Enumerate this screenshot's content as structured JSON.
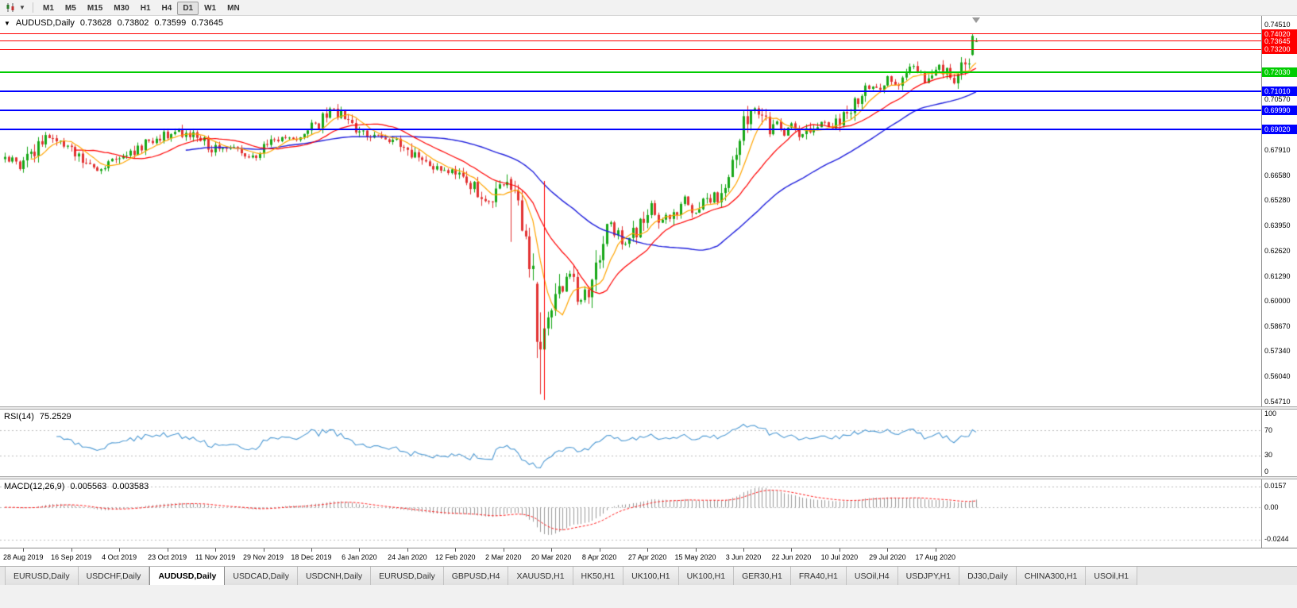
{
  "toolbar": {
    "timeframes": [
      {
        "label": "M1",
        "active": false
      },
      {
        "label": "M5",
        "active": false
      },
      {
        "label": "M15",
        "active": false
      },
      {
        "label": "M30",
        "active": false
      },
      {
        "label": "H1",
        "active": false
      },
      {
        "label": "H4",
        "active": false
      },
      {
        "label": "D1",
        "active": true
      },
      {
        "label": "W1",
        "active": false
      },
      {
        "label": "MN",
        "active": false
      }
    ]
  },
  "chart": {
    "header": {
      "marker": "▼",
      "symbol": "AUDUSD,Daily",
      "open": "0.73628",
      "high": "0.73802",
      "low": "0.73599",
      "close": "0.73645"
    },
    "price_axis_labels": [
      "0.74510",
      "0.70570",
      "0.67910",
      "0.66580",
      "0.65280",
      "0.63950",
      "0.62620",
      "0.61290",
      "0.60000",
      "0.58670",
      "0.57340",
      "0.56040",
      "0.54710"
    ],
    "date_axis": [
      {
        "i": 5,
        "label": "28 Aug 2019"
      },
      {
        "i": 18,
        "label": "16 Sep 2019"
      },
      {
        "i": 31,
        "label": "4 Oct 2019"
      },
      {
        "i": 44,
        "label": "23 Oct 2019"
      },
      {
        "i": 57,
        "label": "11 Nov 2019"
      },
      {
        "i": 70,
        "label": "29 Nov 2019"
      },
      {
        "i": 83,
        "label": "18 Dec 2019"
      },
      {
        "i": 96,
        "label": "6 Jan 2020"
      },
      {
        "i": 109,
        "label": "24 Jan 2020"
      },
      {
        "i": 122,
        "label": "12 Feb 2020"
      },
      {
        "i": 135,
        "label": "2 Mar 2020"
      },
      {
        "i": 148,
        "label": "20 Mar 2020"
      },
      {
        "i": 161,
        "label": "8 Apr 2020"
      },
      {
        "i": 174,
        "label": "27 Apr 2020"
      },
      {
        "i": 187,
        "label": "15 May 2020"
      },
      {
        "i": 200,
        "label": "3 Jun 2020"
      },
      {
        "i": 213,
        "label": "22 Jun 2020"
      },
      {
        "i": 226,
        "label": "10 Jul 2020"
      },
      {
        "i": 239,
        "label": "29 Jul 2020"
      },
      {
        "i": 252,
        "label": "17 Aug 2020"
      }
    ]
  },
  "rsi": {
    "name": "RSI(14)",
    "value": "75.2529",
    "axis_labels": [
      "100",
      "70",
      "30",
      "0"
    ],
    "levels": [
      70,
      30
    ],
    "color": "#4E9AD4"
  },
  "macd": {
    "name": "MACD(12,26,9)",
    "value_main": "0.005563",
    "value_signal": "0.003583",
    "axis_labels": [
      "0.0157",
      "0.00",
      "-0.0244"
    ],
    "histogram_color": "#9C9C9C",
    "signal_color": "#FF2020",
    "range": [
      -0.027,
      0.0175
    ]
  },
  "tabs": [
    {
      "label": "EURUSD,Daily",
      "active": false
    },
    {
      "label": "USDCHF,Daily",
      "active": false
    },
    {
      "label": "AUDUSD,Daily",
      "active": true
    },
    {
      "label": "USDCAD,Daily",
      "active": false
    },
    {
      "label": "USDCNH,Daily",
      "active": false
    },
    {
      "label": "EURUSD,Daily",
      "active": false
    },
    {
      "label": "GBPUSD,H4",
      "active": false
    },
    {
      "label": "XAUUSD,H1",
      "active": false
    },
    {
      "label": "HK50,H1",
      "active": false
    },
    {
      "label": "UK100,H1",
      "active": false
    },
    {
      "label": "UK100,H1",
      "active": false
    },
    {
      "label": "GER30,H1",
      "active": false
    },
    {
      "label": "FRA40,H1",
      "active": false
    },
    {
      "label": "USOil,H4",
      "active": false
    },
    {
      "label": "USDJPY,H1",
      "active": false
    },
    {
      "label": "DJ30,Daily",
      "active": false
    },
    {
      "label": "CHINA300,H1",
      "active": false
    },
    {
      "label": "USOil,H1",
      "active": false
    }
  ],
  "chart_data": {
    "type": "candlestick",
    "symbol": "AUDUSD",
    "timeframe": "Daily",
    "x_range": [
      "28 Aug 2019",
      "1 Sep 2020"
    ],
    "candle_count": 264,
    "x_first": 6,
    "x_spacing": 4.65,
    "body_width": 3,
    "price_range": [
      0.5446,
      0.7497
    ],
    "last_candle": {
      "open": 0.73628,
      "high": 0.73802,
      "low": 0.73599,
      "close": 0.73645
    },
    "colors": {
      "up": "#18A818",
      "down": "#E23232",
      "ma_fast": "#FFA500",
      "ma_mid": "#FF0000",
      "ma_slow": "#2020DD"
    },
    "moving_averages": [
      {
        "period": 50,
        "color_key": "ma_slow"
      },
      {
        "period": 20,
        "color_key": "ma_mid"
      },
      {
        "period": 8,
        "color_key": "ma_fast"
      }
    ],
    "hlines": [
      {
        "price": 0.7402,
        "label": "0.74020",
        "color": "#FF0000",
        "width": 1
      },
      {
        "price": 0.73645,
        "label": "0.73645",
        "color": "#FF0000",
        "width": 1
      },
      {
        "price": 0.732,
        "label": "0.73200",
        "color": "#FF0000",
        "width": 1
      },
      {
        "price": 0.7203,
        "label": "0.72030",
        "color": "#00CC00",
        "width": 2
      },
      {
        "price": 0.7101,
        "label": "0.71010",
        "color": "#0000FF",
        "width": 2
      },
      {
        "price": 0.6999,
        "label": "0.69990",
        "color": "#0000FF",
        "width": 2
      },
      {
        "price": 0.6902,
        "label": "0.69020",
        "color": "#0000FF",
        "width": 2
      }
    ],
    "close_anchors": [
      [
        0,
        0.6755
      ],
      [
        4,
        0.6705
      ],
      [
        11,
        0.6875
      ],
      [
        18,
        0.679
      ],
      [
        25,
        0.67
      ],
      [
        32,
        0.6755
      ],
      [
        40,
        0.6845
      ],
      [
        46,
        0.6895
      ],
      [
        52,
        0.6855
      ],
      [
        58,
        0.6785
      ],
      [
        62,
        0.681
      ],
      [
        67,
        0.676
      ],
      [
        73,
        0.684
      ],
      [
        80,
        0.686
      ],
      [
        85,
        0.6935
      ],
      [
        89,
        0.701
      ],
      [
        92,
        0.694
      ],
      [
        97,
        0.687
      ],
      [
        103,
        0.685
      ],
      [
        107,
        0.6825
      ],
      [
        112,
        0.674
      ],
      [
        117,
        0.669
      ],
      [
        122,
        0.6675
      ],
      [
        126,
        0.6615
      ],
      [
        131,
        0.6515
      ],
      [
        134,
        0.6625
      ],
      [
        137,
        0.658
      ],
      [
        139,
        0.648
      ],
      [
        141,
        0.6295
      ],
      [
        143,
        0.612
      ],
      [
        144,
        0.5785
      ],
      [
        145,
        0.5745
      ],
      [
        146,
        0.58
      ],
      [
        148,
        0.593
      ],
      [
        150,
        0.607
      ],
      [
        153,
        0.613
      ],
      [
        156,
        0.599
      ],
      [
        160,
        0.618
      ],
      [
        163,
        0.644
      ],
      [
        166,
        0.635
      ],
      [
        168,
        0.629
      ],
      [
        172,
        0.64
      ],
      [
        175,
        0.651
      ],
      [
        177,
        0.643
      ],
      [
        181,
        0.646
      ],
      [
        184,
        0.654
      ],
      [
        186,
        0.645
      ],
      [
        190,
        0.653
      ],
      [
        193,
        0.655
      ],
      [
        195,
        0.664
      ],
      [
        198,
        0.68
      ],
      [
        201,
        0.697
      ],
      [
        203,
        0.701
      ],
      [
        205,
        0.698
      ],
      [
        207,
        0.688
      ],
      [
        209,
        0.693
      ],
      [
        211,
        0.687
      ],
      [
        213,
        0.693
      ],
      [
        215,
        0.686
      ],
      [
        218,
        0.69
      ],
      [
        221,
        0.694
      ],
      [
        224,
        0.692
      ],
      [
        226,
        0.695
      ],
      [
        229,
        0.7
      ],
      [
        232,
        0.708
      ],
      [
        234,
        0.713
      ],
      [
        237,
        0.71
      ],
      [
        239,
        0.716
      ],
      [
        241,
        0.714
      ],
      [
        244,
        0.719
      ],
      [
        246,
        0.723
      ],
      [
        249,
        0.716
      ],
      [
        251,
        0.72
      ],
      [
        253,
        0.724
      ],
      [
        255,
        0.719
      ],
      [
        257,
        0.716
      ],
      [
        259,
        0.7225
      ],
      [
        261,
        0.727
      ],
      [
        262,
        0.739
      ],
      [
        263,
        0.73645
      ]
    ],
    "special_candles": [
      {
        "i": 137,
        "o": 0.664,
        "h": 0.6652,
        "l": 0.631,
        "c": 0.6583
      },
      {
        "i": 144,
        "o": 0.609,
        "h": 0.61,
        "l": 0.57,
        "c": 0.5785
      },
      {
        "i": 145,
        "o": 0.5785,
        "h": 0.594,
        "l": 0.551,
        "c": 0.5745
      },
      {
        "i": 262,
        "o": 0.7292,
        "h": 0.7402,
        "l": 0.7288,
        "c": 0.7392
      },
      {
        "i": 263,
        "o": 0.73628,
        "h": 0.73802,
        "l": 0.73599,
        "c": 0.73645
      }
    ],
    "objects": [
      {
        "type": "vseg",
        "i": 146,
        "from": 0.663,
        "to": 0.548,
        "color": "#FF0000"
      }
    ],
    "rsi_period": 14,
    "macd_params": [
      12,
      26,
      9
    ]
  }
}
